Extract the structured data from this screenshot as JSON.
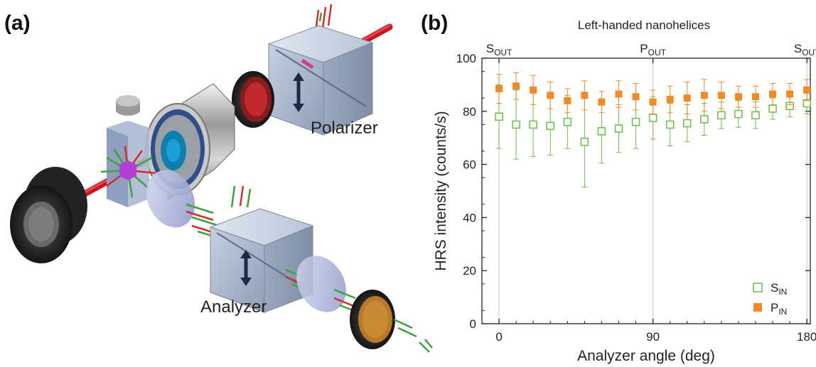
{
  "panel_a": {
    "label": "(a)",
    "polarizer_label": "Polarizer",
    "analyzer_label": "Analyzer"
  },
  "panel_b": {
    "label": "(b)"
  },
  "colors": {
    "s_in": "#6abf45",
    "p_in": "#f28a25",
    "laser": "#e0202a",
    "cube": "#a9b6cc",
    "vertical_lines": "#c8c8c8"
  },
  "chart_data": {
    "type": "scatter",
    "title": "Left-handed nanohelices",
    "xlabel": "Analyzer angle (deg)",
    "ylabel": "HRS intensity (counts/s)",
    "xlim": [
      -10,
      182
    ],
    "ylim": [
      0,
      100
    ],
    "xticks": [
      0,
      90,
      180
    ],
    "yticks": [
      0,
      20,
      40,
      60,
      80,
      100
    ],
    "polarization_labels": [
      {
        "x": 0,
        "main": "S",
        "sub": "OUT"
      },
      {
        "x": 90,
        "main": "P",
        "sub": "OUT"
      },
      {
        "x": 180,
        "main": "S",
        "sub": "OUT"
      }
    ],
    "legend_position": "bottom-right",
    "series": [
      {
        "name_main": "S",
        "name_sub": "IN",
        "marker": "open-square",
        "x": [
          0,
          10,
          20,
          30,
          40,
          50,
          60,
          70,
          80,
          90,
          100,
          110,
          120,
          130,
          140,
          150,
          160,
          170,
          180
        ],
        "y": [
          78,
          75,
          75,
          74.5,
          76,
          68.5,
          72.5,
          73.5,
          76,
          77.5,
          75,
          75.5,
          77,
          78.5,
          79,
          78.5,
          81,
          82,
          83
        ],
        "err": [
          12,
          13,
          12,
          11,
          10,
          17,
          12,
          9,
          10,
          8,
          8,
          7,
          6,
          5,
          5,
          5,
          4,
          4,
          4
        ]
      },
      {
        "name_main": "P",
        "name_sub": "IN",
        "marker": "filled-square",
        "x": [
          0,
          10,
          20,
          30,
          40,
          50,
          60,
          70,
          80,
          90,
          100,
          110,
          120,
          130,
          140,
          150,
          160,
          170,
          180
        ],
        "y": [
          88.5,
          89.5,
          88,
          86,
          84,
          86,
          83.5,
          86.5,
          85.5,
          83.5,
          84.5,
          85,
          86,
          86,
          85.5,
          85.5,
          86.5,
          86.5,
          88
        ],
        "err": [
          5.5,
          5,
          5.5,
          5,
          4.5,
          5.5,
          4,
          5,
          5,
          4.5,
          5,
          6,
          6,
          5,
          4,
          4,
          4,
          4,
          4
        ]
      }
    ]
  }
}
